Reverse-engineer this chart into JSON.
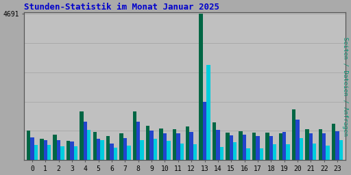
{
  "title": "Stunden-Statistik im Monat Januar 2025",
  "ylabel_right": "Seiten / Dateien / Anfragen",
  "background_color": "#aaaaaa",
  "plot_bg_color": "#c0c0c0",
  "title_color": "#0000cc",
  "ylabel_color": "#009977",
  "ytick_label": "4691",
  "hours": [
    0,
    1,
    2,
    3,
    4,
    5,
    6,
    7,
    8,
    9,
    10,
    11,
    12,
    13,
    14,
    15,
    16,
    17,
    18,
    19,
    20,
    21,
    22,
    23
  ],
  "green_values": [
    950,
    680,
    820,
    620,
    1560,
    900,
    770,
    870,
    1560,
    1100,
    1010,
    990,
    1080,
    4691,
    1210,
    880,
    930,
    890,
    890,
    870,
    1620,
    1000,
    1000,
    1160
  ],
  "blue_values": [
    720,
    640,
    650,
    590,
    1230,
    680,
    530,
    700,
    1230,
    950,
    850,
    870,
    900,
    1870,
    970,
    790,
    810,
    770,
    770,
    910,
    1310,
    870,
    850,
    920
  ],
  "cyan_values": [
    490,
    490,
    450,
    450,
    960,
    640,
    405,
    470,
    640,
    685,
    615,
    535,
    515,
    3050,
    430,
    580,
    385,
    385,
    515,
    515,
    710,
    535,
    470,
    640
  ],
  "bar_width": 0.28,
  "color_green": "#006644",
  "color_blue": "#2244cc",
  "color_cyan": "#00ccdd",
  "grid_color": "#aaaaaa",
  "border_color": "#555555",
  "ylim_max": 4691,
  "ytick_positions": [
    4691
  ],
  "font_family": "monospace",
  "title_fontsize": 9,
  "tick_fontsize": 7
}
